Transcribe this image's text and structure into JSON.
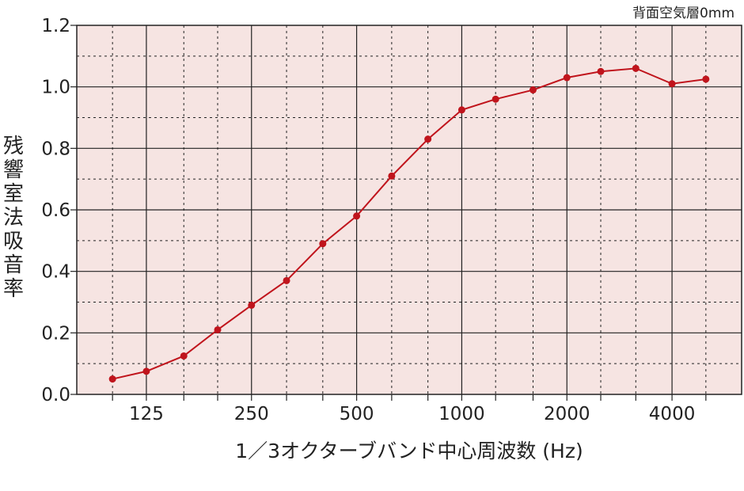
{
  "chart_data": {
    "type": "line",
    "subtitle": "背面空気層0mm",
    "ylabel": "残響室法吸音率",
    "xlabel": "1／3オクターブバンド中心周波数 (Hz)",
    "ylim": [
      0,
      1.2
    ],
    "yticks": [
      "0.0",
      "0.2",
      "0.4",
      "0.6",
      "0.8",
      "1.0",
      "1.2"
    ],
    "xscale": "log",
    "xticks": [
      {
        "value": 125,
        "label": "125"
      },
      {
        "value": 250,
        "label": "250"
      },
      {
        "value": 500,
        "label": "500"
      },
      {
        "value": 1000,
        "label": "1000"
      },
      {
        "value": 2000,
        "label": "2000"
      },
      {
        "value": 4000,
        "label": "4000"
      }
    ],
    "grid": true,
    "series": [
      {
        "color": "#c0141c",
        "x": [
          100,
          125,
          160,
          200,
          250,
          315,
          400,
          500,
          630,
          800,
          1000,
          1250,
          1600,
          2000,
          2500,
          3150,
          4000,
          5000
        ],
        "y": [
          0.05,
          0.075,
          0.125,
          0.21,
          0.29,
          0.37,
          0.49,
          0.58,
          0.71,
          0.83,
          0.925,
          0.96,
          0.99,
          1.03,
          1.05,
          1.06,
          1.01,
          1.025
        ]
      }
    ]
  },
  "colors": {
    "plot_background": "#f6e4e2",
    "line": "#c0141c"
  }
}
